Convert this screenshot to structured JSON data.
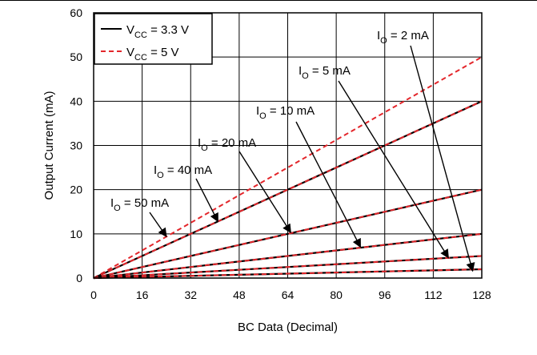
{
  "chart_data": {
    "type": "line",
    "xlabel": "BC Data (Decimal)",
    "ylabel": "Output Current (mA)",
    "xlim": [
      0,
      128
    ],
    "ylim": [
      0,
      60
    ],
    "x_ticks": [
      0,
      16,
      32,
      48,
      64,
      80,
      96,
      112,
      128
    ],
    "y_ticks": [
      0,
      10,
      20,
      30,
      40,
      50,
      60
    ],
    "grid": true,
    "legend_position": "top-left",
    "legend": [
      {
        "main": "V",
        "sub": "CC",
        "rest": " = 3.3 V",
        "color": "#000000",
        "dash": "solid"
      },
      {
        "main": "V",
        "sub": "CC",
        "rest": " = 5 V",
        "color": "#e3262b",
        "dash": "dashed"
      }
    ],
    "x": [
      0,
      128
    ],
    "series": [
      {
        "io_ma": 50,
        "vcc33": [
          0,
          50
        ],
        "vcc5": [
          0,
          50
        ]
      },
      {
        "io_ma": 40,
        "vcc33": [
          0,
          40
        ],
        "vcc5": [
          0,
          40
        ]
      },
      {
        "io_ma": 20,
        "vcc33": [
          0,
          20
        ],
        "vcc5": [
          0,
          20
        ]
      },
      {
        "io_ma": 10,
        "vcc33": [
          0,
          10
        ],
        "vcc5": [
          0,
          10
        ]
      },
      {
        "io_ma": 5,
        "vcc33": [
          0,
          5
        ],
        "vcc5": [
          0,
          5
        ]
      },
      {
        "io_ma": 2,
        "vcc33": [
          0,
          2
        ],
        "vcc5": [
          0,
          2
        ]
      }
    ],
    "vcc33_drawn_for": [
      40,
      20,
      10,
      5,
      2
    ],
    "annotations": [
      {
        "main": "I",
        "sub": "O",
        "rest": " = 2 mA",
        "target_x": 125,
        "target_y": 1.6
      },
      {
        "main": "I",
        "sub": "O",
        "rest": " = 5 mA",
        "target_x": 117,
        "target_y": 4.6
      },
      {
        "main": "I",
        "sub": "O",
        "rest": " = 10 mA",
        "target_x": 88,
        "target_y": 7.0
      },
      {
        "main": "I",
        "sub": "O",
        "rest": " = 20 mA",
        "target_x": 65,
        "target_y": 10.3
      },
      {
        "main": "I",
        "sub": "O",
        "rest": " = 40 mA",
        "target_x": 41,
        "target_y": 12.8
      },
      {
        "main": "I",
        "sub": "O",
        "rest": " = 50 mA",
        "target_x": 24,
        "target_y": 9.4
      }
    ],
    "colors": {
      "vcc33": "#000000",
      "vcc5": "#e3262b",
      "grid": "#000000"
    }
  }
}
